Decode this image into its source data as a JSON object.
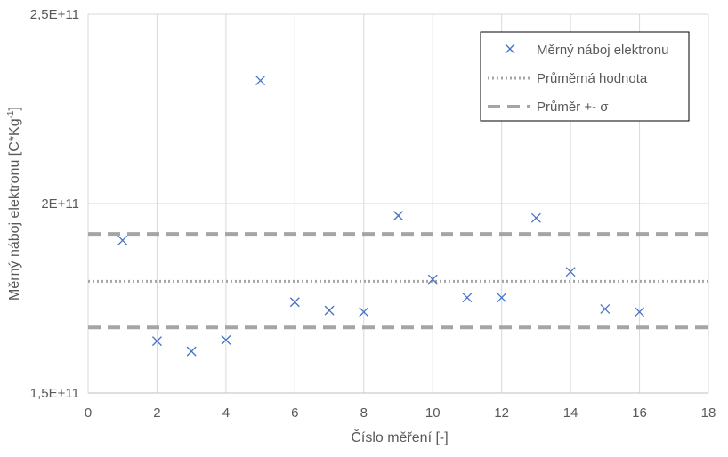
{
  "chart_data": {
    "type": "scatter",
    "title": "",
    "xlabel": "Číslo měření [-]",
    "ylabel_main": "Měrný náboj elektronu [C*Kg",
    "ylabel_sup": "-1",
    "ylabel_end": "]",
    "xlim": [
      0,
      18
    ],
    "ylim": [
      150000000000.0,
      250000000000.0
    ],
    "x_ticks": [
      0,
      2,
      4,
      6,
      8,
      10,
      12,
      14,
      16,
      18
    ],
    "x_tick_labels": [
      "0",
      "2",
      "4",
      "6",
      "8",
      "10",
      "12",
      "14",
      "16",
      "18"
    ],
    "y_ticks": [
      150000000000.0,
      200000000000.0,
      250000000000.0
    ],
    "y_tick_labels": [
      "1,5E+11",
      "2E+11",
      "2,5E+11"
    ],
    "grid": true,
    "legend_position": "top-right",
    "series": [
      {
        "name": "Měrný náboj elektronu",
        "marker": "x",
        "color": "#4472C4",
        "x": [
          1,
          2,
          3,
          4,
          5,
          6,
          7,
          8,
          9,
          10,
          11,
          12,
          13,
          14,
          15,
          16
        ],
        "y": [
          190300000000.0,
          163700000000.0,
          161000000000.0,
          164000000000.0,
          232500000000.0,
          174000000000.0,
          171800000000.0,
          171400000000.0,
          196800000000.0,
          180000000000.0,
          175200000000.0,
          175200000000.0,
          196200000000.0,
          182000000000.0,
          172200000000.0,
          171400000000.0
        ]
      },
      {
        "name": "Průměrná hodnota",
        "style": "dotted",
        "color": "#A5A5A5",
        "y_value": 179500000000.0
      },
      {
        "name": "Průměr +- σ",
        "style": "dashed",
        "color": "#A5A5A5",
        "y_values": [
          192000000000.0,
          167300000000.0
        ]
      }
    ]
  }
}
